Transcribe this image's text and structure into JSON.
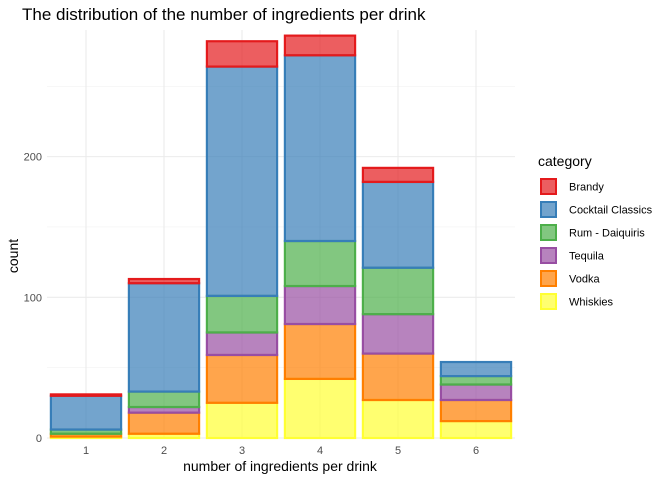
{
  "chart_data": {
    "type": "bar",
    "stacked": true,
    "title": "The distribution of the number of ingredients per drink",
    "xlabel": "number of ingredients per drink",
    "ylabel": "count",
    "categories": [
      "1",
      "2",
      "3",
      "4",
      "5",
      "6"
    ],
    "y_ticks": [
      0,
      100,
      200
    ],
    "ylim": [
      0,
      290
    ],
    "grid": true,
    "legend_title": "category",
    "legend_position": "right",
    "series": [
      {
        "name": "Whiskies",
        "fill": "#FFFF33",
        "stroke": "#FFFF33",
        "values": [
          1,
          3,
          25,
          42,
          27,
          12
        ]
      },
      {
        "name": "Vodka",
        "fill": "#FF7F00",
        "stroke": "#FF7F00",
        "values": [
          2,
          15,
          34,
          39,
          33,
          15
        ]
      },
      {
        "name": "Tequila",
        "fill": "#984EA3",
        "stroke": "#984EA3",
        "values": [
          0,
          4,
          16,
          27,
          28,
          11
        ]
      },
      {
        "name": "Rum - Daiquiris",
        "fill": "#4DAF4A",
        "stroke": "#4DAF4A",
        "values": [
          3,
          11,
          26,
          32,
          33,
          6
        ]
      },
      {
        "name": "Cocktail Classics",
        "fill": "#377EB8",
        "stroke": "#377EB8",
        "values": [
          24,
          77,
          163,
          132,
          61,
          10
        ]
      },
      {
        "name": "Brandy",
        "fill": "#E41A1C",
        "stroke": "#E41A1C",
        "values": [
          1,
          3,
          18,
          14,
          10,
          0
        ]
      }
    ],
    "legend_order": [
      "Brandy",
      "Cocktail Classics",
      "Rum - Daiquiris",
      "Tequila",
      "Vodka",
      "Whiskies"
    ]
  }
}
